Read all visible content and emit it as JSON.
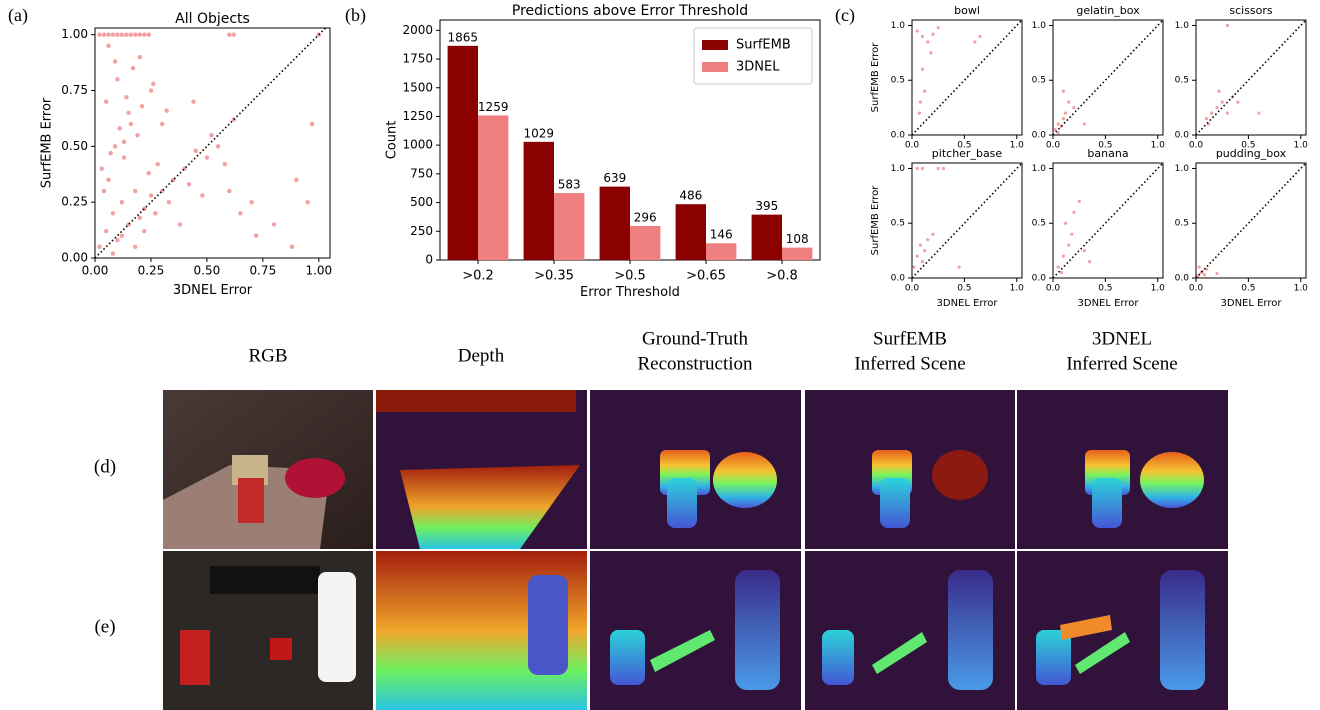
{
  "panel_labels": [
    "(a)",
    "(b)",
    "(c)"
  ],
  "chart_data": [
    {
      "type": "scatter",
      "title": "All Objects",
      "xlabel": "3DNEL Error",
      "ylabel": "SurfEMB Error",
      "color": "#f08080",
      "diagonal": true,
      "xlim": [
        0,
        1.05
      ],
      "ylim": [
        0,
        1.03
      ],
      "xticks": [
        {
          "value": 0,
          "label": "0.00"
        },
        0.25,
        {
          "value": 0.5,
          "label": "0.50"
        },
        0.75,
        {
          "value": 1,
          "label": "1.00"
        }
      ],
      "yticks": [
        {
          "value": 0,
          "label": "0.00"
        },
        0.25,
        {
          "value": 0.5,
          "label": "0.50"
        },
        0.75,
        {
          "value": 1,
          "label": "1.00"
        }
      ],
      "x": [
        0.02,
        0.05,
        0.08,
        0.1,
        0.12,
        0.15,
        0.18,
        0.2,
        0.22,
        0.25,
        0.03,
        0.06,
        0.09,
        0.13,
        0.16,
        0.19,
        0.24,
        0.28,
        0.3,
        0.35,
        0.4,
        0.45,
        0.5,
        0.55,
        0.6,
        0.65,
        0.7,
        0.05,
        0.1,
        0.15,
        0.2,
        0.25,
        0.3,
        0.12,
        0.08,
        0.04,
        0.18,
        0.22,
        0.27,
        0.33,
        0.38,
        0.42,
        0.48,
        0.52,
        0.58,
        0.62,
        0.72,
        0.8,
        0.9,
        0.95,
        1.0,
        0.06,
        0.09,
        0.14,
        0.17,
        0.21,
        0.11,
        0.07,
        0.13,
        0.26,
        0.32,
        0.44,
        0.88,
        0.97,
        0.02,
        0.04,
        0.06,
        0.08,
        0.1,
        0.12,
        0.14,
        0.16,
        0.18,
        0.2,
        0.22,
        0.24,
        0.6,
        0.62
      ],
      "values": [
        0.05,
        0.12,
        0.2,
        0.08,
        0.25,
        0.15,
        0.3,
        0.18,
        0.22,
        0.28,
        0.4,
        0.35,
        0.5,
        0.45,
        0.6,
        0.55,
        0.38,
        0.42,
        0.3,
        0.35,
        0.4,
        0.48,
        0.45,
        0.5,
        0.3,
        0.2,
        0.25,
        0.7,
        0.8,
        0.65,
        0.9,
        0.75,
        0.6,
        0.1,
        0.02,
        0.3,
        0.05,
        0.12,
        0.2,
        0.25,
        0.15,
        0.33,
        0.28,
        0.55,
        0.42,
        0.62,
        0.1,
        0.15,
        0.35,
        0.25,
        1.0,
        0.95,
        0.88,
        0.72,
        0.85,
        0.68,
        0.58,
        0.47,
        0.52,
        0.78,
        0.66,
        0.7,
        0.05,
        0.6,
        1.0,
        1.0,
        1.0,
        1.0,
        1.0,
        1.0,
        1.0,
        1.0,
        1.0,
        1.0,
        1.0,
        1.0,
        1.0,
        1.0
      ]
    },
    {
      "type": "bar",
      "title": "Predictions above Error Threshold",
      "xlabel": "Error Threshold",
      "ylabel": "Count",
      "legend": "upper right",
      "ylim": [
        0,
        2090
      ],
      "yticks": [
        0,
        250,
        500,
        750,
        1000,
        1250,
        1500,
        1750,
        2000
      ],
      "categories": [
        ">0.2",
        ">0.35",
        ">0.5",
        ">0.65",
        ">0.8"
      ],
      "series": [
        {
          "name": "SurfEMB",
          "color": "#8b0000",
          "values": [
            1865,
            1029,
            639,
            486,
            395
          ]
        },
        {
          "name": "3DNEL",
          "color": "#f08080",
          "values": [
            1259,
            583,
            296,
            146,
            108
          ]
        }
      ]
    },
    {
      "type": "scatter",
      "title": "bowl",
      "ylabel": "SurfEMB Error",
      "color": "#f08080",
      "diagonal": true,
      "xlim": [
        0,
        1.05
      ],
      "ylim": [
        0,
        1.05
      ],
      "xticks": [
        {
          "value": 0,
          "label": "0.0"
        },
        0.5,
        {
          "value": 1,
          "label": "1.0"
        }
      ],
      "yticks": [
        {
          "value": 0,
          "label": "0.0"
        },
        0.5,
        {
          "value": 1,
          "label": "1.0"
        }
      ],
      "x": [
        0.05,
        0.1,
        0.15,
        0.2,
        0.08,
        0.12,
        0.18,
        0.25,
        0.6,
        0.65,
        0.1,
        0.07
      ],
      "values": [
        0.95,
        0.9,
        0.85,
        0.92,
        0.3,
        0.4,
        0.75,
        0.98,
        0.85,
        0.9,
        0.6,
        0.2
      ]
    },
    {
      "type": "scatter",
      "title": "gelatin_box",
      "color": "#f08080",
      "diagonal": true,
      "xlim": [
        0,
        1.05
      ],
      "ylim": [
        0,
        1.05
      ],
      "xticks": [
        {
          "value": 0,
          "label": "0.0"
        },
        0.5,
        {
          "value": 1,
          "label": "1.0"
        }
      ],
      "yticks": [
        {
          "value": 0,
          "label": "0.0"
        },
        0.5,
        {
          "value": 1,
          "label": "1.0"
        }
      ],
      "x": [
        0.02,
        0.05,
        0.08,
        0.1,
        0.12,
        0.15,
        0.2,
        0.1,
        0.05,
        0.3
      ],
      "values": [
        0.05,
        0.1,
        0.08,
        0.15,
        0.2,
        0.3,
        0.25,
        0.4,
        0.02,
        0.1
      ]
    },
    {
      "type": "scatter",
      "title": "scissors",
      "color": "#f08080",
      "diagonal": true,
      "xlim": [
        0,
        1.05
      ],
      "ylim": [
        0,
        1.05
      ],
      "xticks": [
        {
          "value": 0,
          "label": "0.0"
        },
        0.5,
        {
          "value": 1,
          "label": "1.0"
        }
      ],
      "yticks": [
        {
          "value": 0,
          "label": "0.0"
        },
        0.5,
        {
          "value": 1,
          "label": "1.0"
        }
      ],
      "x": [
        0.1,
        0.15,
        0.2,
        0.25,
        0.3,
        0.35,
        0.12,
        0.22,
        0.4,
        0.6,
        0.3
      ],
      "values": [
        0.15,
        0.2,
        0.25,
        0.3,
        0.2,
        0.35,
        0.1,
        0.4,
        0.3,
        0.2,
        1.0
      ]
    },
    {
      "type": "scatter",
      "title": "pitcher_base",
      "xlabel": "3DNEL Error",
      "ylabel": "SurfEMB Error",
      "color": "#f08080",
      "diagonal": true,
      "xlim": [
        0,
        1.05
      ],
      "ylim": [
        0,
        1.05
      ],
      "xticks": [
        {
          "value": 0,
          "label": "0.0"
        },
        0.5,
        {
          "value": 1,
          "label": "1.0"
        }
      ],
      "yticks": [
        {
          "value": 0,
          "label": "0.0"
        },
        0.5,
        {
          "value": 1,
          "label": "1.0"
        }
      ],
      "x": [
        0.02,
        0.05,
        0.08,
        0.1,
        0.12,
        0.15,
        0.2,
        0.25,
        0.05,
        0.1,
        0.3,
        0.45
      ],
      "values": [
        0.1,
        0.2,
        0.3,
        0.15,
        0.25,
        0.35,
        0.4,
        1.0,
        1.0,
        1.0,
        1.0,
        0.1
      ]
    },
    {
      "type": "scatter",
      "title": "banana",
      "xlabel": "3DNEL Error",
      "color": "#f08080",
      "diagonal": true,
      "xlim": [
        0,
        1.05
      ],
      "ylim": [
        0,
        1.05
      ],
      "xticks": [
        {
          "value": 0,
          "label": "0.0"
        },
        0.5,
        {
          "value": 1,
          "label": "1.0"
        }
      ],
      "yticks": [
        {
          "value": 0,
          "label": "0.0"
        },
        0.5,
        {
          "value": 1,
          "label": "1.0"
        }
      ],
      "x": [
        0.05,
        0.1,
        0.12,
        0.15,
        0.2,
        0.25,
        0.08,
        0.18,
        0.3,
        0.35
      ],
      "values": [
        0.1,
        0.2,
        0.5,
        0.3,
        0.6,
        0.7,
        0.05,
        0.4,
        0.25,
        0.15
      ]
    },
    {
      "type": "scatter",
      "title": "pudding_box",
      "xlabel": "3DNEL Error",
      "color": "#f08080",
      "diagonal": true,
      "xlim": [
        0,
        1.05
      ],
      "ylim": [
        0,
        1.05
      ],
      "xticks": [
        {
          "value": 0,
          "label": "0.0"
        },
        0.5,
        {
          "value": 1,
          "label": "1.0"
        }
      ],
      "yticks": [
        {
          "value": 0,
          "label": "0.0"
        },
        0.5,
        {
          "value": 1,
          "label": "1.0"
        }
      ],
      "x": [
        0.02,
        0.05,
        0.08,
        0.1,
        0.03,
        0.06,
        0.2
      ],
      "values": [
        0.02,
        0.05,
        0.03,
        0.08,
        0.1,
        0.06,
        0.04
      ]
    }
  ],
  "image_grid": {
    "columns": [
      [
        "RGB"
      ],
      [
        "Depth"
      ],
      [
        "Ground-Truth",
        "Reconstruction"
      ],
      [
        "SurfEMB",
        "Inferred Scene"
      ],
      [
        "3DNEL",
        "Inferred Scene"
      ]
    ],
    "rows": [
      "(d)",
      "(e)"
    ]
  }
}
